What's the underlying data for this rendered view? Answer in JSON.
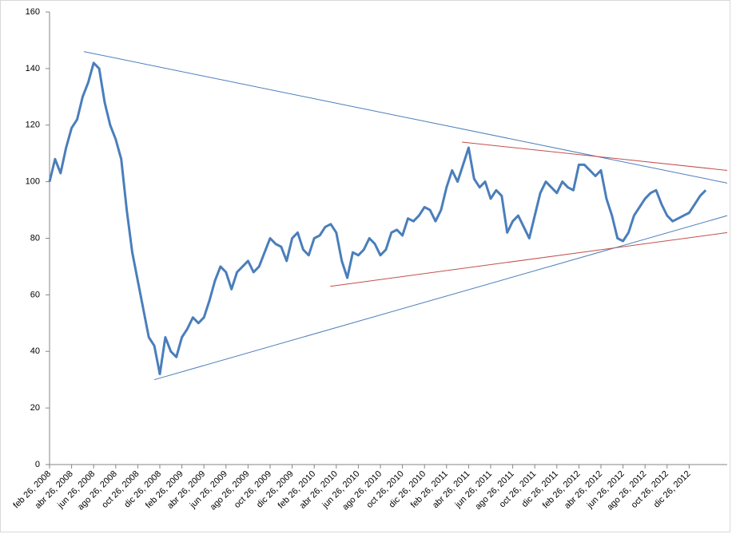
{
  "chart_data": {
    "type": "line",
    "color": "#4a7ebb",
    "categories": [
      "feb 26, 2008",
      null,
      null,
      null,
      "abr 26, 2008",
      null,
      null,
      null,
      "jun 26, 2008",
      null,
      null,
      null,
      "ago 26, 2008",
      null,
      null,
      null,
      "oct 26, 2008",
      null,
      null,
      null,
      "dic 26, 2008",
      null,
      null,
      null,
      "feb 26, 2009",
      null,
      null,
      null,
      "abr 26, 2009",
      null,
      null,
      null,
      "jun 26, 2009",
      null,
      null,
      null,
      "ago 26, 2009",
      null,
      null,
      null,
      "oct 26, 2009",
      null,
      null,
      null,
      "dic 26, 2009",
      null,
      null,
      null,
      "feb 26, 2010",
      null,
      null,
      null,
      "abr 26, 2010",
      null,
      null,
      null,
      "jun 26, 2010",
      null,
      null,
      null,
      "ago 26, 2010",
      null,
      null,
      null,
      "oct 26, 2010",
      null,
      null,
      null,
      "dic 26, 2010",
      null,
      null,
      null,
      "feb 26, 2011",
      null,
      null,
      null,
      "abr 26, 2011",
      null,
      null,
      null,
      "jun 26, 2011",
      null,
      null,
      null,
      "ago 26, 2011",
      null,
      null,
      null,
      "oct 26, 2011",
      null,
      null,
      null,
      "dic 26, 2011",
      null,
      null,
      null,
      "feb 26, 2012",
      null,
      null,
      null,
      "abr 26, 2012",
      null,
      null,
      null,
      "jun 26, 2012",
      null,
      null,
      null,
      "ago 26, 2012",
      null,
      null,
      null,
      "oct 26, 2012",
      null,
      null,
      null,
      "dic 26, 2012",
      null,
      null,
      null
    ],
    "values": [
      100,
      108,
      103,
      112,
      119,
      122,
      130,
      135,
      142,
      140,
      128,
      120,
      115,
      108,
      90,
      75,
      65,
      55,
      45,
      42,
      32,
      45,
      40,
      38,
      45,
      48,
      52,
      50,
      52,
      58,
      65,
      70,
      68,
      62,
      68,
      70,
      72,
      68,
      70,
      75,
      80,
      78,
      77,
      72,
      80,
      82,
      76,
      74,
      80,
      81,
      84,
      85,
      82,
      72,
      66,
      75,
      74,
      76,
      80,
      78,
      74,
      76,
      82,
      83,
      81,
      87,
      86,
      88,
      91,
      90,
      86,
      90,
      98,
      104,
      100,
      106,
      112,
      101,
      98,
      100,
      94,
      97,
      95,
      82,
      86,
      88,
      84,
      80,
      88,
      96,
      100,
      98,
      96,
      100,
      98,
      97,
      106,
      106,
      104,
      102,
      104,
      94,
      88,
      80,
      79,
      82,
      88,
      91,
      94,
      96,
      97,
      92,
      88,
      86,
      87,
      88,
      89,
      92,
      95,
      97
    ],
    "ylim": [
      0,
      160
    ],
    "yticks": [
      0,
      20,
      40,
      60,
      80,
      100,
      120,
      140,
      160
    ],
    "grid": false,
    "trendlines": [
      {
        "color": "#4a7ebb",
        "start": [
          6.2,
          146
        ],
        "end": [
          122.9,
          99.5
        ]
      },
      {
        "color": "#4a7ebb",
        "start": [
          19,
          30
        ],
        "end": [
          122.9,
          88
        ]
      },
      {
        "color": "#c0504d",
        "start": [
          74.8,
          114
        ],
        "end": [
          122.9,
          104
        ]
      },
      {
        "color": "#c0504d",
        "start": [
          50.9,
          63
        ],
        "end": [
          122.9,
          82
        ]
      }
    ]
  }
}
